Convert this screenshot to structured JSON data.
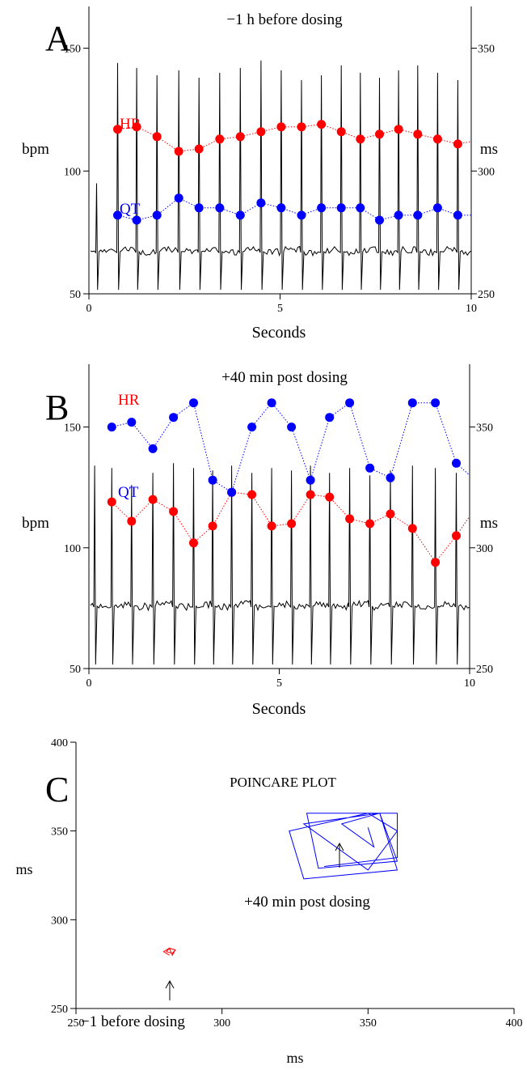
{
  "chart_data": [
    {
      "type": "line",
      "panel_label": "A",
      "title": "−1 h before dosing",
      "xlabel": "Seconds",
      "ylabel_left": "bpm",
      "ylabel_right": "ms",
      "xlim": [
        0,
        10
      ],
      "ylim_left": [
        50,
        167
      ],
      "ylim_right": [
        250,
        367
      ],
      "x_ticks": [
        "0",
        "5",
        "10"
      ],
      "y_ticks_left": [
        "50",
        "100",
        "150"
      ],
      "y_ticks_right": [
        "250",
        "300",
        "350"
      ],
      "series": [
        {
          "name": "HR",
          "axis": "left",
          "color": "#ff0000",
          "x": [
            0.75,
            1.25,
            1.78,
            2.35,
            2.88,
            3.42,
            3.96,
            4.5,
            5.03,
            5.56,
            6.08,
            6.6,
            7.1,
            7.6,
            8.1,
            8.6,
            9.12,
            9.65,
            10.0
          ],
          "y": [
            117,
            118,
            114,
            108,
            109,
            113,
            114,
            116,
            118,
            118,
            119,
            116,
            113,
            115,
            117,
            115,
            113,
            111,
            112
          ]
        },
        {
          "name": "QT",
          "axis": "right",
          "color": "#0000ff",
          "x": [
            0.75,
            1.25,
            1.78,
            2.35,
            2.88,
            3.42,
            3.96,
            4.5,
            5.03,
            5.56,
            6.08,
            6.6,
            7.1,
            7.6,
            8.1,
            8.6,
            9.12,
            9.65,
            10.0
          ],
          "y": [
            282,
            280,
            282,
            289,
            285,
            285,
            282,
            287,
            285,
            282,
            285,
            285,
            285,
            280,
            282,
            282,
            285,
            282,
            282
          ]
        }
      ]
    },
    {
      "type": "line",
      "panel_label": "B",
      "title": "+40 min post dosing",
      "xlabel": "Seconds",
      "ylabel_left": "bpm",
      "ylabel_right": "ms",
      "xlim": [
        0,
        10
      ],
      "ylim_left": [
        50,
        176
      ],
      "ylim_right": [
        250,
        376
      ],
      "x_ticks": [
        "0",
        "5",
        "10"
      ],
      "y_ticks_left": [
        "50",
        "100",
        "150"
      ],
      "y_ticks_right": [
        "250",
        "300",
        "350"
      ],
      "series": [
        {
          "name": "HR",
          "axis": "left",
          "color": "#ff0000",
          "x": [
            0.6,
            1.12,
            1.68,
            2.22,
            2.75,
            3.25,
            3.75,
            4.28,
            4.8,
            5.32,
            5.82,
            6.32,
            6.85,
            7.38,
            7.92,
            8.5,
            9.1,
            9.65,
            10.0
          ],
          "y": [
            119,
            111,
            120,
            115,
            102,
            109,
            123,
            122,
            109,
            110,
            122,
            121,
            112,
            110,
            114,
            108,
            94,
            105,
            113
          ]
        },
        {
          "name": "QT",
          "axis": "right",
          "color": "#0000ff",
          "x": [
            0.6,
            1.12,
            1.68,
            2.22,
            2.75,
            3.25,
            3.75,
            4.28,
            4.8,
            5.32,
            5.82,
            6.32,
            6.85,
            7.38,
            7.92,
            8.5,
            9.1,
            9.65,
            10.0
          ],
          "y": [
            350,
            352,
            341,
            354,
            360,
            328,
            323,
            350,
            360,
            350,
            328,
            354,
            360,
            333,
            329,
            360,
            360,
            335,
            330
          ]
        }
      ]
    },
    {
      "type": "line",
      "panel_label": "C",
      "title": "POINCARE PLOT",
      "xlabel": "ms",
      "ylabel": "ms",
      "xlim": [
        250,
        400
      ],
      "ylim": [
        250,
        400
      ],
      "x_ticks": [
        "250",
        "300",
        "350",
        "400"
      ],
      "y_ticks": [
        "250",
        "300",
        "350",
        "400"
      ],
      "annotations": [
        "+40 min post dosing",
        "−1 before dosing"
      ],
      "series": [
        {
          "name": "",
          "color": "#0000ff",
          "x": [
            350,
            352,
            341,
            354,
            360,
            328,
            323,
            350,
            360,
            350,
            328,
            354,
            360,
            333,
            329,
            360,
            360,
            335
          ],
          "y": [
            352,
            341,
            354,
            360,
            328,
            323,
            350,
            360,
            350,
            328,
            354,
            360,
            333,
            329,
            360,
            360,
            335,
            330
          ]
        },
        {
          "name": "",
          "color": "#ff0000",
          "x": [
            282,
            280,
            282,
            284,
            283,
            282,
            284,
            283,
            281,
            282,
            284,
            283
          ],
          "y": [
            280,
            282,
            284,
            283,
            280,
            284,
            283,
            281,
            282,
            284,
            283,
            280
          ]
        }
      ]
    }
  ]
}
